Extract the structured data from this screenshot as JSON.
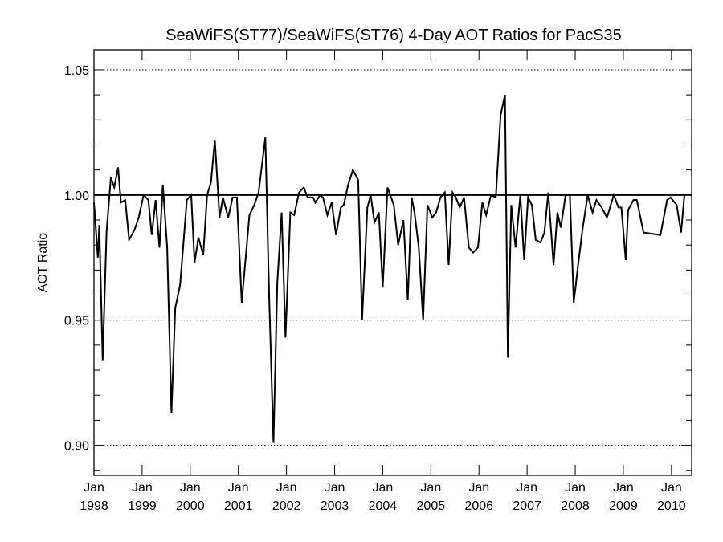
{
  "chart_data": {
    "type": "line",
    "title": "SeaWiFS(ST77)/SeaWiFS(ST76) 4-Day AOT Ratios for PacS35",
    "xlabel": "",
    "ylabel": "AOT Ratio",
    "xlim": [
      1998.0,
      2010.42
    ],
    "ylim": [
      0.888,
      1.058
    ],
    "y_ticks": [
      {
        "value": 0.9,
        "label": "0.90"
      },
      {
        "value": 0.95,
        "label": "0.95"
      },
      {
        "value": 1.0,
        "label": "1.00"
      },
      {
        "value": 1.05,
        "label": "1.05"
      }
    ],
    "y_minor_ticks": [
      0.89,
      0.91,
      0.92,
      0.93,
      0.94,
      0.96,
      0.97,
      0.98,
      0.99,
      1.01,
      1.02,
      1.03,
      1.04
    ],
    "x_ticks": [
      {
        "value": 1998,
        "month": "Jan",
        "year": "1998"
      },
      {
        "value": 1999,
        "month": "Jan",
        "year": "1999"
      },
      {
        "value": 2000,
        "month": "Jan",
        "year": "2000"
      },
      {
        "value": 2001,
        "month": "Jan",
        "year": "2001"
      },
      {
        "value": 2002,
        "month": "Jan",
        "year": "2002"
      },
      {
        "value": 2003,
        "month": "Jan",
        "year": "2003"
      },
      {
        "value": 2004,
        "month": "Jan",
        "year": "2004"
      },
      {
        "value": 2005,
        "month": "Jan",
        "year": "2005"
      },
      {
        "value": 2006,
        "month": "Jan",
        "year": "2006"
      },
      {
        "value": 2007,
        "month": "Jan",
        "year": "2007"
      },
      {
        "value": 2008,
        "month": "Jan",
        "year": "2008"
      },
      {
        "value": 2009,
        "month": "Jan",
        "year": "2009"
      },
      {
        "value": 2010,
        "month": "Jan",
        "year": "2010"
      }
    ],
    "grid": "dotted horizontal lines at major y ticks",
    "reference_line": 1.0,
    "series": [
      {
        "color": "#000000",
        "x": [
          1998.0,
          1998.08,
          1998.11,
          1998.18,
          1998.26,
          1998.35,
          1998.42,
          1998.5,
          1998.56,
          1998.65,
          1998.73,
          1998.84,
          1998.93,
          1999.03,
          1999.13,
          1999.2,
          1999.28,
          1999.36,
          1999.43,
          1999.52,
          1999.61,
          1999.69,
          1999.79,
          1999.93,
          2000.02,
          2000.09,
          2000.17,
          2000.27,
          2000.35,
          2000.43,
          2000.51,
          2000.61,
          2000.68,
          2000.79,
          2000.88,
          2000.97,
          2001.07,
          2001.23,
          2001.33,
          2001.42,
          2001.56,
          2001.64,
          2001.73,
          2001.81,
          2001.9,
          2001.98,
          2002.08,
          2002.16,
          2002.26,
          2002.36,
          2002.44,
          2002.55,
          2002.6,
          2002.7,
          2002.76,
          2002.85,
          2002.94,
          2003.03,
          2003.13,
          2003.19,
          2003.28,
          2003.38,
          2003.49,
          2003.57,
          2003.68,
          2003.75,
          2003.83,
          2003.92,
          2004.0,
          2004.1,
          2004.23,
          2004.32,
          2004.43,
          2004.52,
          2004.6,
          2004.66,
          2004.75,
          2004.84,
          2004.93,
          2005.03,
          2005.11,
          2005.2,
          2005.29,
          2005.37,
          2005.45,
          2005.52,
          2005.6,
          2005.69,
          2005.79,
          2005.88,
          2005.98,
          2006.07,
          2006.15,
          2006.25,
          2006.35,
          2006.45,
          2006.54,
          2006.6,
          2006.67,
          2006.76,
          2006.86,
          2006.94,
          2007.02,
          2007.1,
          2007.18,
          2007.28,
          2007.36,
          2007.44,
          2007.55,
          2007.63,
          2007.7,
          2007.8,
          2007.89,
          2007.97,
          2008.06,
          2008.15,
          2008.26,
          2008.36,
          2008.44,
          2008.55,
          2008.66,
          2008.8,
          2008.9,
          2008.96,
          2009.05,
          2009.1,
          2009.21,
          2009.28,
          2009.42,
          2009.77,
          2009.91,
          2009.98,
          2010.11,
          2010.2,
          2010.27
        ],
        "y": [
          0.997,
          0.975,
          0.988,
          0.934,
          0.985,
          1.007,
          1.003,
          1.011,
          0.997,
          0.998,
          0.982,
          0.986,
          0.991,
          1.0,
          0.998,
          0.984,
          0.998,
          0.979,
          1.004,
          0.979,
          0.913,
          0.955,
          0.964,
          0.998,
          1.0,
          0.973,
          0.983,
          0.976,
          1.0,
          1.005,
          1.022,
          0.991,
          0.999,
          0.991,
          0.999,
          0.999,
          0.957,
          0.992,
          0.996,
          1.001,
          1.023,
          0.96,
          0.901,
          0.965,
          0.993,
          0.943,
          0.993,
          0.992,
          1.001,
          1.003,
          0.999,
          0.999,
          0.997,
          1.0,
          0.999,
          0.992,
          0.997,
          0.984,
          0.995,
          0.996,
          1.004,
          1.01,
          1.006,
          0.95,
          0.995,
          1.0,
          0.989,
          0.993,
          0.963,
          1.003,
          0.996,
          0.98,
          0.99,
          0.958,
          0.999,
          0.993,
          0.979,
          0.95,
          0.996,
          0.991,
          0.993,
          0.999,
          1.001,
          0.972,
          1.001,
          0.999,
          0.995,
          0.999,
          0.979,
          0.977,
          0.979,
          0.997,
          0.992,
          1.0,
          0.999,
          1.032,
          1.04,
          0.935,
          0.996,
          0.979,
          1.0,
          0.974,
          0.999,
          0.996,
          0.982,
          0.981,
          0.985,
          1.001,
          0.972,
          0.993,
          0.987,
          1.0,
          1.0,
          0.957,
          0.972,
          0.986,
          1.0,
          0.993,
          0.998,
          0.995,
          0.991,
          1.0,
          0.995,
          0.995,
          0.974,
          0.994,
          0.998,
          0.998,
          0.985,
          0.984,
          0.998,
          0.999,
          0.996,
          0.985,
          1.0
        ]
      }
    ]
  }
}
